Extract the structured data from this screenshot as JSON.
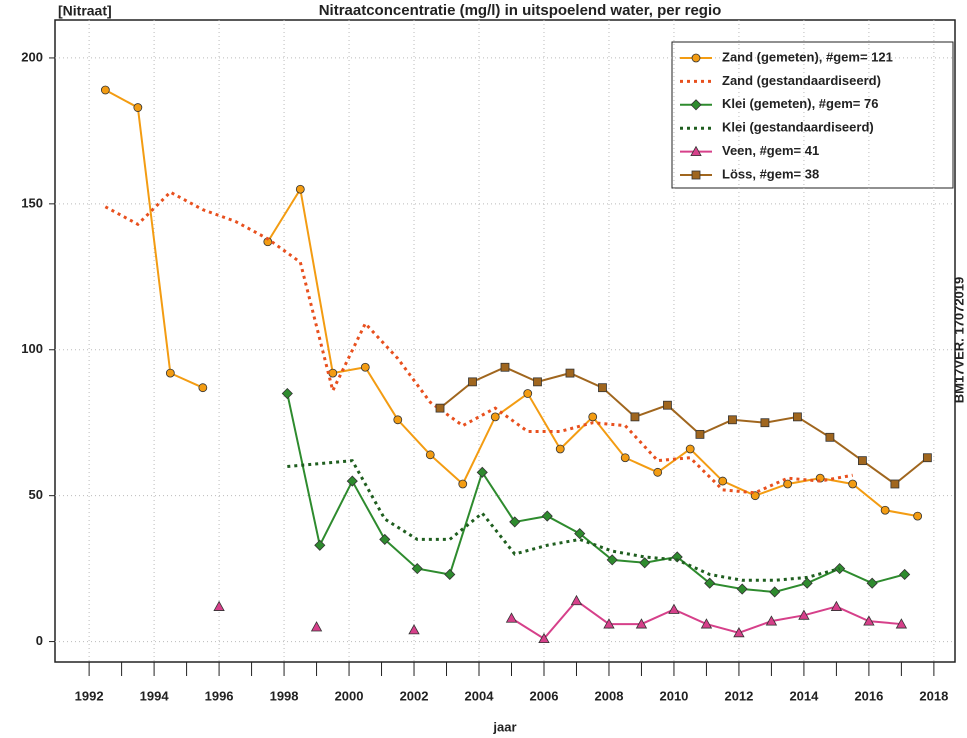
{
  "chart_data": {
    "type": "line",
    "title": "Nitraatconcentratie (mg/l) in uitspoelend water, per regio",
    "ylabel": "[Nitraat]",
    "xlabel": "jaar",
    "annotation": "BM17VER. 17072019",
    "xlim": [
      1990.95,
      2018.65
    ],
    "ylim": [
      -7,
      213
    ],
    "xticks": [
      1992,
      1994,
      1996,
      1998,
      2000,
      2002,
      2004,
      2006,
      2008,
      2010,
      2012,
      2014,
      2016,
      2018
    ],
    "xminorticks": [
      1993,
      1995,
      1997,
      1999,
      2001,
      2003,
      2005,
      2007,
      2009,
      2011,
      2013,
      2015,
      2017
    ],
    "yticks": [
      0,
      50,
      100,
      150,
      200
    ],
    "grid": true,
    "legend": "top-right",
    "series": [
      {
        "name": "Zand (gemeten), #gem= 121",
        "color": "#f39c12",
        "marker": "circle",
        "line_style": "solid",
        "x": [
          1992.5,
          1993.5,
          1994.5,
          1995.5,
          1996.5,
          1997.5,
          1998.5,
          1999.5,
          2000.5,
          2001.5,
          2002.5,
          2003.5,
          2004.5,
          2005.5,
          2006.5,
          2007.5,
          2008.5,
          2009.5,
          2010.5,
          2011.5,
          2012.5,
          2013.5,
          2014.5,
          2015.5,
          2016.5,
          2017.5
        ],
        "values": [
          189,
          183,
          92,
          87,
          null,
          137,
          155,
          92,
          94,
          76,
          64,
          54,
          77,
          85,
          66,
          77,
          63,
          58,
          66,
          55,
          50,
          54,
          56,
          54,
          45,
          43
        ]
      },
      {
        "name": "Zand (gestandaardiseerd)",
        "color": "#e8501e",
        "marker": "none",
        "line_style": "dotted",
        "x": [
          1992.5,
          1993.5,
          1994.5,
          1995.5,
          1996.5,
          1997.5,
          1998.5,
          1999.5,
          2000.5,
          2001.5,
          2002.5,
          2003.5,
          2004.5,
          2005.5,
          2006.5,
          2007.5,
          2008.5,
          2009.5,
          2010.5,
          2011.5,
          2012.5,
          2013.5,
          2014.5,
          2015.5
        ],
        "values": [
          149,
          143,
          154,
          148,
          144,
          138,
          130,
          86,
          109,
          97,
          82,
          74,
          80,
          72,
          72,
          75,
          74,
          62,
          63,
          52,
          51,
          56,
          55,
          57
        ]
      },
      {
        "name": "Klei (gemeten), #gem= 76",
        "color": "#2e8b2e",
        "marker": "diamond",
        "line_style": "solid",
        "x": [
          1998.1,
          1999.1,
          2000.1,
          2001.1,
          2002.1,
          2003.1,
          2004.1,
          2005.1,
          2006.1,
          2007.1,
          2008.1,
          2009.1,
          2010.1,
          2011.1,
          2012.1,
          2013.1,
          2014.1,
          2015.1,
          2016.1,
          2017.1
        ],
        "values": [
          85,
          33,
          55,
          35,
          25,
          23,
          58,
          41,
          43,
          37,
          28,
          27,
          29,
          20,
          18,
          17,
          20,
          25,
          20,
          23
        ]
      },
      {
        "name": "Klei (gestandaardiseerd)",
        "color": "#1f5e1f",
        "marker": "none",
        "line_style": "dotted",
        "x": [
          1998.1,
          1999.1,
          2000.1,
          2001.1,
          2002.1,
          2003.1,
          2004.1,
          2005.1,
          2006.1,
          2007.1,
          2008.1,
          2009.1,
          2010.1,
          2011.1,
          2012.1,
          2013.1,
          2014.1,
          2015.1
        ],
        "values": [
          60,
          61,
          62,
          42,
          35,
          35,
          44,
          30,
          33,
          35,
          31,
          29,
          28,
          23,
          21,
          21,
          22,
          25
        ]
      },
      {
        "name": "Veen, #gem= 41",
        "color": "#d6408a",
        "marker": "triangle",
        "line_style": "solid",
        "x": [
          1996,
          1997,
          1999,
          2000,
          2002,
          2003,
          2005,
          2006,
          2007,
          2008,
          2009,
          2010,
          2011,
          2012,
          2013,
          2014,
          2015,
          2016,
          2017
        ],
        "values": [
          12,
          null,
          5,
          null,
          4,
          null,
          8,
          1,
          14,
          6,
          6,
          11,
          6,
          3,
          7,
          9,
          12,
          7,
          6
        ]
      },
      {
        "name": "Löss, #gem= 38",
        "color": "#a0661e",
        "marker": "square",
        "line_style": "solid",
        "x": [
          2002.8,
          2003.8,
          2004.8,
          2005.8,
          2006.8,
          2007.8,
          2008.8,
          2009.8,
          2010.8,
          2011.8,
          2012.8,
          2013.8,
          2014.8,
          2015.8,
          2016.8,
          2017.8
        ],
        "values": [
          80,
          89,
          94,
          89,
          92,
          87,
          77,
          81,
          71,
          76,
          75,
          77,
          70,
          62,
          54,
          63
        ]
      }
    ]
  }
}
